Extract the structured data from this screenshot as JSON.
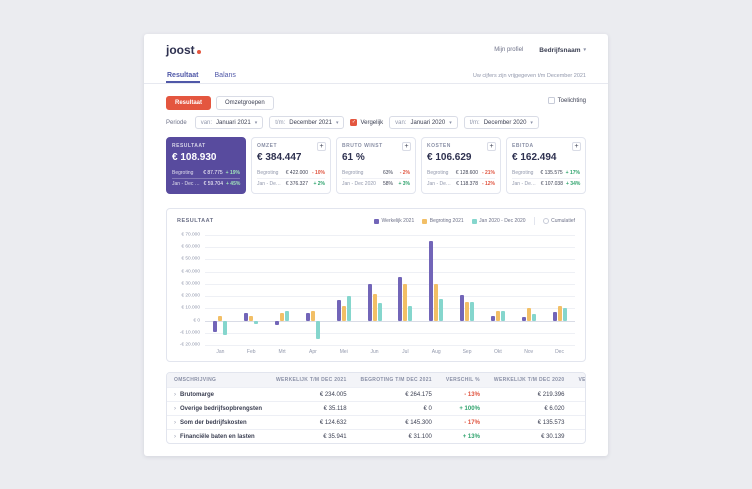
{
  "brand": {
    "logo_text": "joost",
    "accent_color": "#e4563f"
  },
  "topbar": {
    "profile_label": "Mijn profiel",
    "company_label": "Bedrijfsnaam"
  },
  "tabs": [
    {
      "label": "Resultaat",
      "active": true
    },
    {
      "label": "Balans",
      "active": false
    }
  ],
  "release_note": "Uw cijfers zijn vrijgegeven t/m December 2021",
  "toolbar": {
    "buttons": [
      {
        "label": "Resultaat",
        "active": true
      },
      {
        "label": "Omzetgroepen",
        "active": false
      }
    ],
    "toelichting_label": "Toelichting",
    "toelichting_checked": false
  },
  "filters": {
    "periode_label": "Periode",
    "vergelijk_label": "Vergelijk",
    "vergelijk_checked": true,
    "selects": [
      {
        "prefix": "van:",
        "value": "Januari 2021"
      },
      {
        "prefix": "t/m:",
        "value": "December 2021"
      },
      {
        "prefix": "van:",
        "value": "Januari 2020"
      },
      {
        "prefix": "t/m:",
        "value": "December 2020"
      }
    ]
  },
  "kpis": [
    {
      "label": "RESULTAAT",
      "value": "€ 108.930",
      "highlight": true,
      "rows": [
        {
          "name": "Begroting",
          "value": "€ 87.775",
          "delta": "+ 19%"
        },
        {
          "name": "Jan - Dec 2020",
          "value": "€ 59.704",
          "delta": "+ 45%"
        }
      ]
    },
    {
      "label": "OMZET",
      "value": "€ 384.447",
      "highlight": false,
      "rows": [
        {
          "name": "Begroting",
          "value": "€ 422.000",
          "delta": "- 10%"
        },
        {
          "name": "Jan - Dec 2020",
          "value": "€ 376.327",
          "delta": "+ 2%"
        }
      ]
    },
    {
      "label": "BRUTO WINST",
      "value": "61 %",
      "highlight": false,
      "rows": [
        {
          "name": "Begroting",
          "value": "63%",
          "delta": "- 2%"
        },
        {
          "name": "Jan - Dec 2020",
          "value": "58%",
          "delta": "+ 3%"
        }
      ]
    },
    {
      "label": "KOSTEN",
      "value": "€ 106.629",
      "highlight": false,
      "rows": [
        {
          "name": "Begroting",
          "value": "€ 128.600",
          "delta": "- 21%"
        },
        {
          "name": "Jan - Dec 2020",
          "value": "€ 118.378",
          "delta": "- 12%"
        }
      ]
    },
    {
      "label": "EBITDA",
      "value": "€ 162.494",
      "highlight": false,
      "rows": [
        {
          "name": "Begroting",
          "value": "€ 135.575",
          "delta": "+ 17%"
        },
        {
          "name": "Jan - Dec 2020",
          "value": "€ 107.038",
          "delta": "+ 34%"
        }
      ]
    }
  ],
  "chart_data": {
    "type": "bar",
    "title": "RESULTAAT",
    "categories": [
      "Jan",
      "Feb",
      "Mrt",
      "Apr",
      "Mei",
      "Jun",
      "Jul",
      "Aug",
      "Sep",
      "Okt",
      "Nov",
      "Dec"
    ],
    "series": [
      {
        "name": "Werkelijk 2021",
        "color": "#7265b8",
        "values": [
          -9000,
          6000,
          -4000,
          6000,
          17000,
          30000,
          36000,
          65000,
          21000,
          4000,
          3000,
          7000
        ]
      },
      {
        "name": "Begroting 2021",
        "color": "#f2bf66",
        "values": [
          4000,
          4000,
          6000,
          8000,
          12000,
          22000,
          30000,
          30000,
          15000,
          8000,
          10000,
          12000
        ]
      },
      {
        "name": "Jan 2020 - Dec 2020",
        "color": "#85d6cd",
        "values": [
          -12000,
          -3000,
          8000,
          -15000,
          20000,
          14000,
          12000,
          18000,
          15000,
          8000,
          5000,
          10000
        ]
      }
    ],
    "ylim": [
      -20000,
      70000
    ],
    "ytick_labels": [
      "€ 70.000",
      "€ 60.000",
      "€ 50.000",
      "€ 40.000",
      "€ 30.000",
      "€ 20.000",
      "€ 10.000",
      "€ 0",
      "-€ 10.000",
      "-€ 20.000"
    ],
    "grid": true,
    "legend_position": "top-right",
    "cumulatief_label": "Cumulatief",
    "cumulatief_checked": false
  },
  "table": {
    "headers": [
      "OMSCHRIJVING",
      "WERKELIJK T/M DEC 2021",
      "BEGROTING T/M DEC 2021",
      "VERSCHIL %",
      "WERKELIJK T/M DEC 2020",
      "VERSCHIL %"
    ],
    "rows": [
      {
        "name": "Brutomarge",
        "werkelijk_2021": "€ 234.005",
        "begroting_2021": "€ 264.175",
        "verschil_begroting": "- 13%",
        "werkelijk_2020": "€ 219.396",
        "verschil_2020": "+ 6%"
      },
      {
        "name": "Overige bedrijfsopbrengsten",
        "werkelijk_2021": "€ 35.118",
        "begroting_2021": "€ 0",
        "verschil_begroting": "+ 100%",
        "werkelijk_2020": "€ 6.020",
        "verschil_2020": "+ 83%"
      },
      {
        "name": "Som der bedrijfskosten",
        "werkelijk_2021": "€ 124.632",
        "begroting_2021": "€ 145.300",
        "verschil_begroting": "- 17%",
        "werkelijk_2020": "€ 135.573",
        "verschil_2020": "- 9%"
      },
      {
        "name": "Financiële baten en lasten",
        "werkelijk_2021": "€ 35.941",
        "begroting_2021": "€ 31.100",
        "verschil_begroting": "+ 13%",
        "werkelijk_2020": "€ 30.139",
        "verschil_2020": "+ 15%"
      }
    ]
  },
  "colors": {
    "positive": "#2fa36d",
    "negative": "#e0543f",
    "primary_purple": "#584b9e",
    "accent": "#e4563f",
    "bar_purple": "#7265b8",
    "bar_yellow": "#f2bf66",
    "bar_teal": "#85d6cd",
    "page_background": "#ebecf0"
  }
}
